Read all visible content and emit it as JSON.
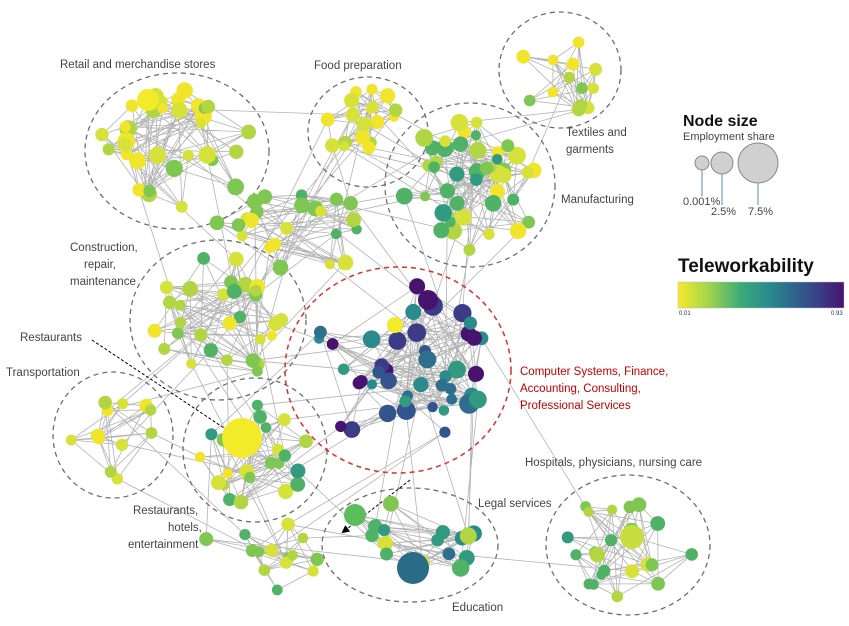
{
  "clusters": [
    {
      "label": "Retail and merchandise stores"
    },
    {
      "label": "Food preparation"
    },
    {
      "label_lines": [
        "Textiles and",
        "garments"
      ]
    },
    {
      "label": "Manufacturing"
    },
    {
      "label_lines": [
        "Construction,",
        "repair,",
        "maintenance"
      ]
    },
    {
      "label": "Restaurants"
    },
    {
      "label": "Transportation"
    },
    {
      "label_lines": [
        "Computer Systems, Finance,",
        "Accounting, Consulting,",
        "Professional Services"
      ]
    },
    {
      "label": "Hospitals, physicians, nursing care"
    },
    {
      "label": "Legal services"
    },
    {
      "label_lines": [
        "Restaurants,",
        "hotels,",
        "entertainment"
      ]
    },
    {
      "label": "Education"
    }
  ],
  "legend": {
    "node_size": {
      "title": "Node size",
      "subtitle": "Employment share",
      "labels": [
        "0.001%",
        "2.5%",
        "7.5%"
      ]
    },
    "teleworkability": {
      "title": "Teleworkability",
      "min_label": "0.01",
      "max_label": "0.93",
      "colors": [
        "#f7e92c",
        "#a4d64a",
        "#3aaa7a",
        "#2a8a8c",
        "#2f5f8d",
        "#3b3b86",
        "#47136e"
      ]
    }
  },
  "colors": {
    "edge": "#9a9a9a",
    "cluster_outline": "#6e6e6e",
    "professional_outline": "#d63030"
  }
}
